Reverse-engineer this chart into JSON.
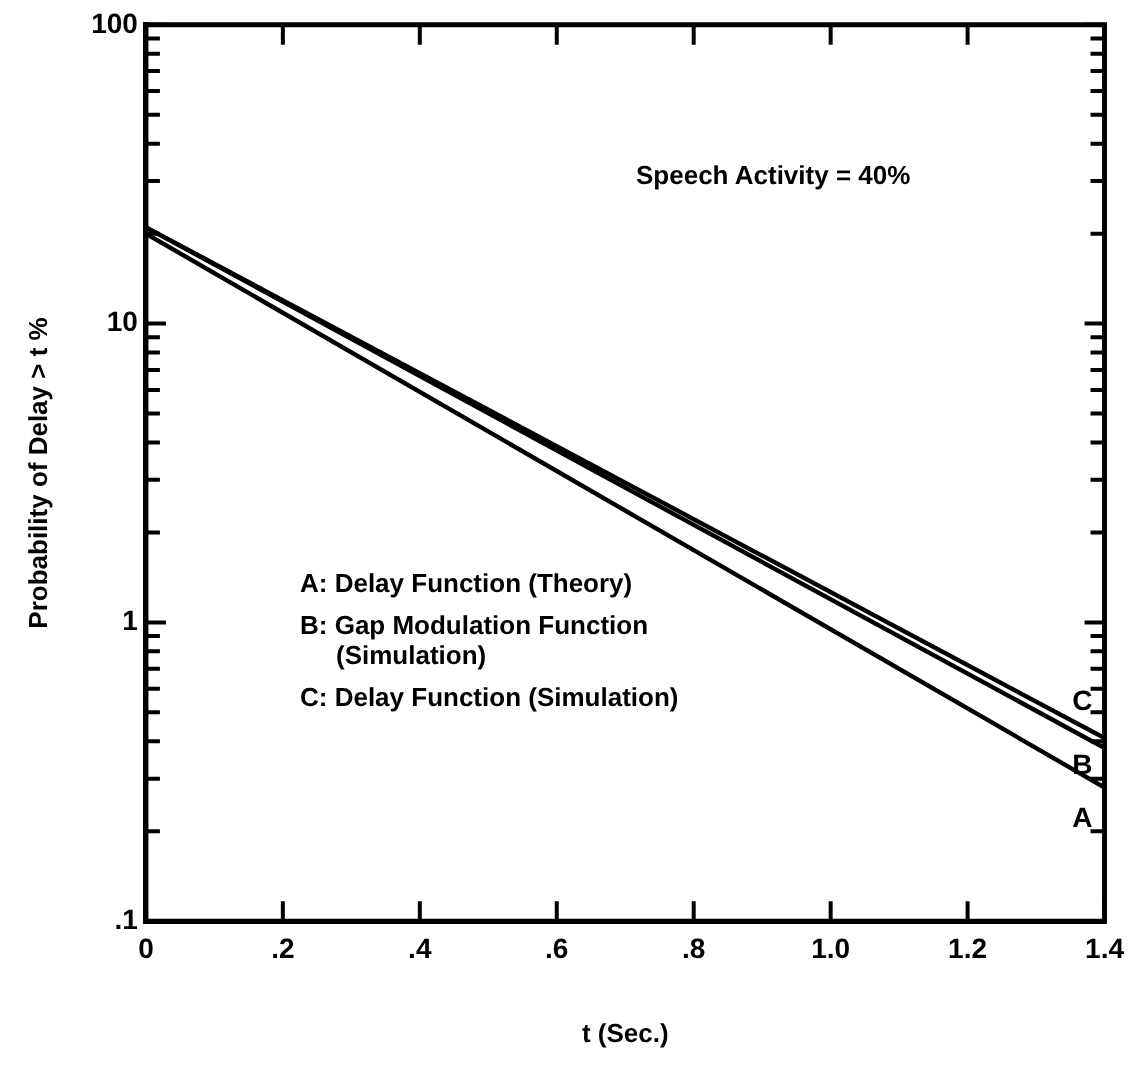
{
  "chart_data": {
    "type": "line",
    "xlabel": "t (Sec.)",
    "ylabel": "Probability of Delay > t %",
    "annotations": [
      "Speech Activity = 40%",
      "A: Delay Function (Theory)",
      "B: Gap Modulation Function (Simulation)",
      "C: Delay Function (Simulation)"
    ],
    "x": [
      0,
      1.4
    ],
    "series": [
      {
        "name": "A",
        "color": "#000000",
        "values": [
          20,
          0.28
        ]
      },
      {
        "name": "B",
        "color": "#000000",
        "values": [
          21,
          0.38
        ]
      },
      {
        "name": "C",
        "color": "#000000",
        "values": [
          21,
          0.41
        ]
      }
    ],
    "xlim": [
      0,
      1.4
    ],
    "xticks": [
      0,
      {
        "value": 0.2,
        "label": ".2"
      },
      {
        "value": 0.4,
        "label": ".4"
      },
      {
        "value": 0.6,
        "label": ".6"
      },
      {
        "value": 0.8,
        "label": ".8"
      },
      {
        "value": 1,
        "label": "1.0"
      },
      {
        "value": 1.2,
        "label": "1.2"
      },
      {
        "value": 1.4,
        "label": "1.4"
      }
    ],
    "ylim": [
      0.1,
      100
    ],
    "yticks": [
      {
        "value": 0.1,
        "label": ".1"
      },
      {
        "value": 0.2,
        "label": null
      },
      {
        "value": 0.3,
        "label": null
      },
      {
        "value": 0.4,
        "label": null
      },
      {
        "value": 0.5,
        "label": null
      },
      {
        "value": 0.6,
        "label": null
      },
      {
        "value": 0.7,
        "label": null
      },
      {
        "value": 0.8,
        "label": null
      },
      {
        "value": 0.9,
        "label": null
      },
      1,
      {
        "value": 2,
        "label": null
      },
      {
        "value": 3,
        "label": null
      },
      {
        "value": 4,
        "label": null
      },
      {
        "value": 5,
        "label": null
      },
      {
        "value": 6,
        "label": null
      },
      {
        "value": 7,
        "label": null
      },
      {
        "value": 8,
        "label": null
      },
      {
        "value": 9,
        "label": null
      },
      10,
      {
        "value": 20,
        "label": null
      },
      {
        "value": 30,
        "label": null
      },
      {
        "value": 40,
        "label": null
      },
      {
        "value": 50,
        "label": null
      },
      {
        "value": 60,
        "label": null
      },
      {
        "value": 70,
        "label": null
      },
      {
        "value": 80,
        "label": null
      },
      {
        "value": 90,
        "label": null
      },
      100
    ],
    "log": true,
    "grid": false,
    "legend": "right",
    "marker": "none",
    "line_style": "solid"
  }
}
